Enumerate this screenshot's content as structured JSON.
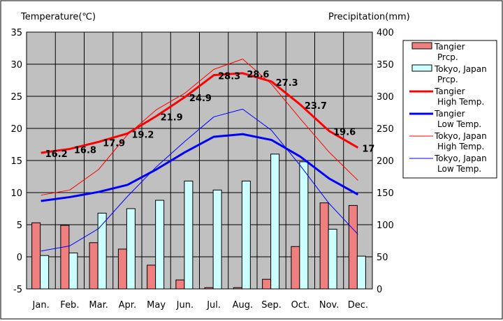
{
  "chart_data": {
    "type": "bar+line",
    "categories": [
      "Jan.",
      "Feb.",
      "Mar.",
      "Apr.",
      "May",
      "Jun.",
      "Jul.",
      "Aug.",
      "Sep.",
      "Oct.",
      "Nov.",
      "Dec."
    ],
    "left_axis": {
      "label": "Temperature(℃)",
      "ylim": [
        -5,
        35
      ],
      "ticks": [
        "-5",
        "0",
        "5",
        "10",
        "15",
        "20",
        "25",
        "30",
        "35"
      ]
    },
    "right_axis": {
      "label": "Precipitation(mm)",
      "ylim": [
        0,
        400
      ],
      "ticks": [
        "0",
        "50",
        "100",
        "150",
        "200",
        "250",
        "300",
        "350",
        "400"
      ]
    },
    "grid": true,
    "legend_position": "right",
    "bar_series": [
      {
        "name_lines": [
          "Tangier",
          "Prcp."
        ],
        "axis": "right",
        "color": "#f08080",
        "values": [
          103,
          99,
          72,
          62,
          37,
          14,
          2,
          2,
          15,
          66,
          134,
          130
        ]
      },
      {
        "name_lines": [
          "Tokyo, Japan",
          "Prcp."
        ],
        "axis": "right",
        "color": "#ccffff",
        "values": [
          52,
          56,
          118,
          125,
          138,
          168,
          154,
          168,
          210,
          198,
          93,
          51
        ]
      }
    ],
    "line_series": [
      {
        "name_lines": [
          "Tangier",
          "High Temp."
        ],
        "axis": "left",
        "color": "#ff0000",
        "width": 3,
        "values": [
          16.2,
          16.8,
          17.9,
          19.2,
          21.9,
          24.9,
          28.3,
          28.6,
          27.3,
          23.7,
          19.6,
          17.0
        ],
        "labels": [
          "16.2",
          "16.8",
          "17.9",
          "19.2",
          "21.9",
          "24.9",
          "28.3",
          "28.6",
          "27.3",
          "23.7",
          "19.6",
          "17"
        ]
      },
      {
        "name_lines": [
          "Tangier",
          "Low Temp."
        ],
        "axis": "left",
        "color": "#0000ff",
        "width": 3,
        "values": [
          8.7,
          9.3,
          10.1,
          11.2,
          13.6,
          16.3,
          18.7,
          19.1,
          18.2,
          15.6,
          12.2,
          9.7
        ]
      },
      {
        "name_lines": [
          "Tokyo, Japan",
          "High Temp."
        ],
        "axis": "left",
        "color": "#ff0000",
        "width": 1,
        "values": [
          9.6,
          10.4,
          13.6,
          19.0,
          22.9,
          25.5,
          29.2,
          30.8,
          26.9,
          21.5,
          16.3,
          11.9
        ]
      },
      {
        "name_lines": [
          "Tokyo, Japan",
          "Low Temp."
        ],
        "axis": "left",
        "color": "#0000ff",
        "width": 1,
        "values": [
          0.9,
          1.7,
          4.4,
          9.4,
          14.0,
          18.0,
          21.8,
          23.0,
          19.7,
          14.2,
          8.3,
          3.5
        ]
      }
    ]
  }
}
